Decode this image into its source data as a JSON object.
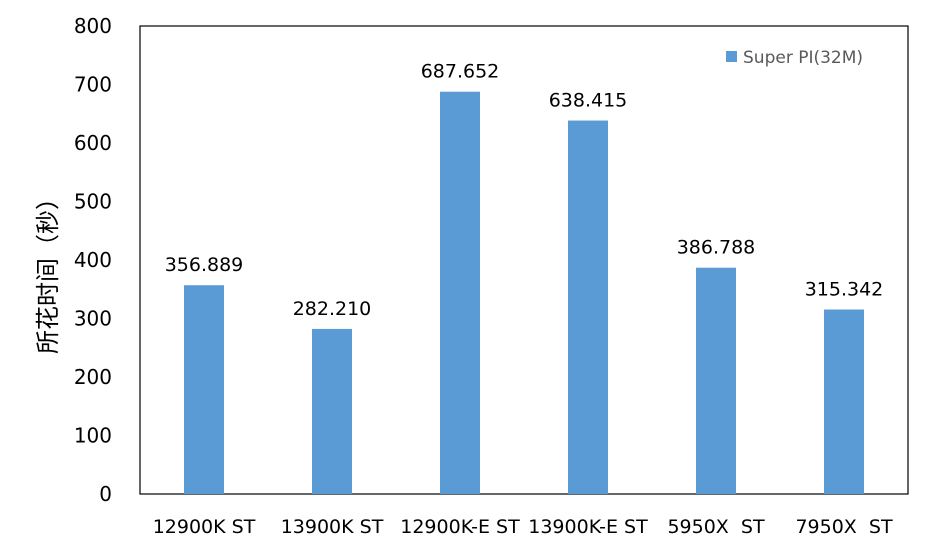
{
  "chart_data": {
    "type": "bar",
    "ylabel": "所花时间（秒）",
    "ylim": [
      0,
      800
    ],
    "yticks": [
      0,
      100,
      200,
      300,
      400,
      500,
      600,
      700,
      800
    ],
    "grid": false,
    "legend_position": "top-right",
    "categories": [
      "12900K ST",
      "13900K ST",
      "12900K-E ST",
      "13900K-E ST",
      "5950X  ST",
      "7950X  ST"
    ],
    "series": [
      {
        "name": "Super PI(32M)",
        "color": "#5B9BD5",
        "values": [
          356.889,
          282.21,
          687.652,
          638.415,
          386.788,
          315.342
        ],
        "labels": [
          "356.889",
          "282.210",
          "687.652",
          "638.415",
          "386.788",
          "315.342"
        ]
      }
    ]
  }
}
